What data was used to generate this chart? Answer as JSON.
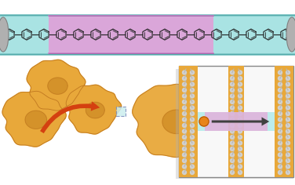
{
  "bg_color": "#ffffff",
  "cell_color": "#E8A83A",
  "cell_inner_color": "#D4922A",
  "cell_outline": "#C07820",
  "arrow_color": "#D44010",
  "membrane_bg": "#E8A83A",
  "channel_cyan": "#A8E8E8",
  "channel_pink": "#E8A8D8",
  "dark_arrow_color": "#404040",
  "dot_color": "#E8841A",
  "nanotube_cyan": "#A0E0E0",
  "nanotube_pink": "#E0A0D8",
  "box_border": "#909090",
  "shadow_color": "#C0C0C0"
}
